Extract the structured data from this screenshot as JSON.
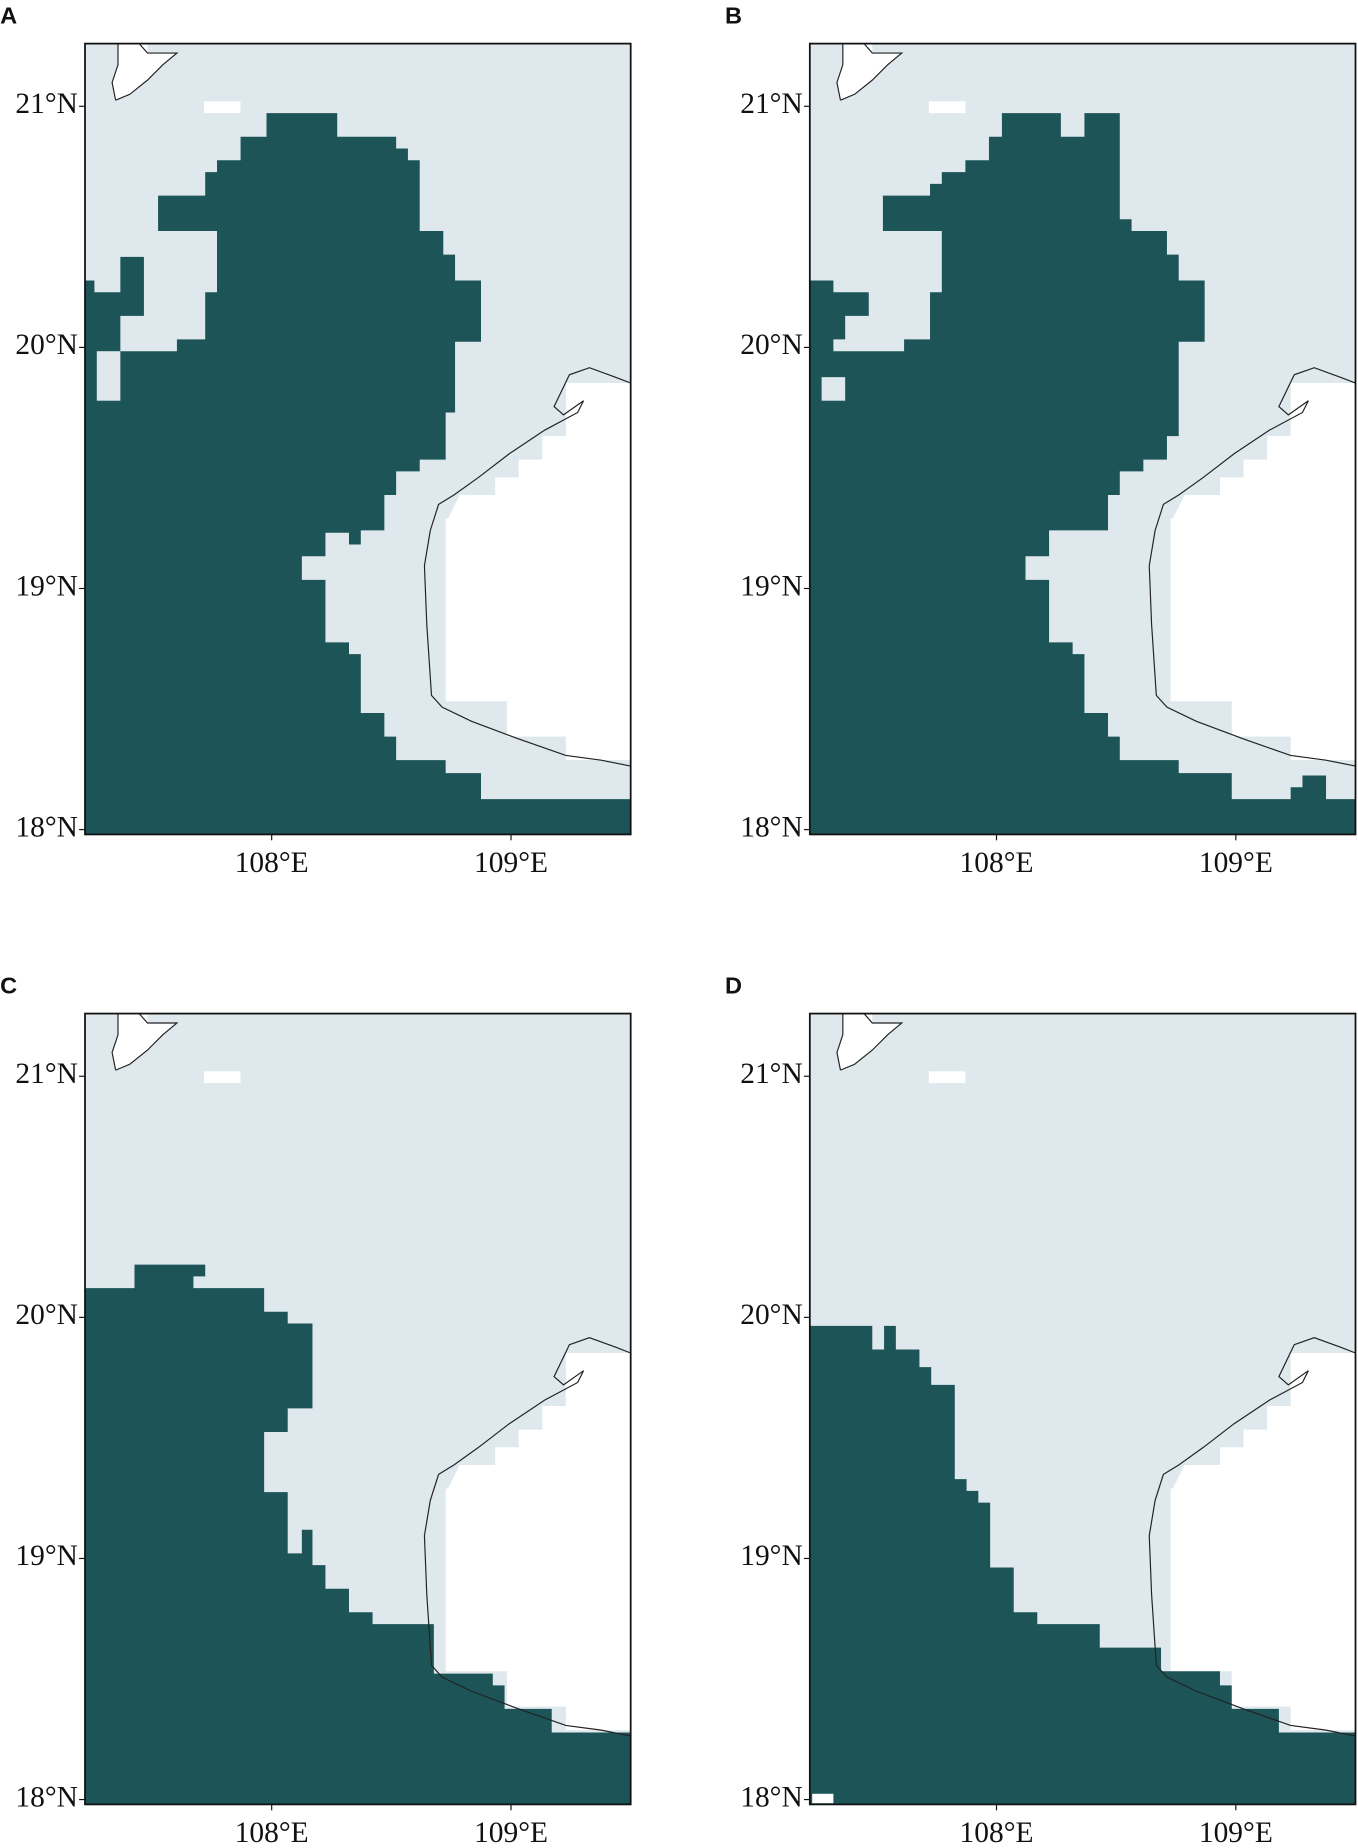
{
  "panels": [
    {
      "label": "A"
    },
    {
      "label": "B"
    },
    {
      "label": "C"
    },
    {
      "label": "D"
    }
  ],
  "lat_range": [
    17.98,
    21.26
  ],
  "lon_range": [
    107.22,
    109.5
  ],
  "lat_ticks": [
    {
      "value": 18,
      "label": "18°N"
    },
    {
      "value": 19,
      "label": "19°N"
    },
    {
      "value": 20,
      "label": "20°N"
    },
    {
      "value": 21,
      "label": "21°N"
    }
  ],
  "lon_ticks": [
    {
      "value": 108,
      "label": "108°E"
    },
    {
      "value": 109,
      "label": "109°E"
    }
  ]
}
